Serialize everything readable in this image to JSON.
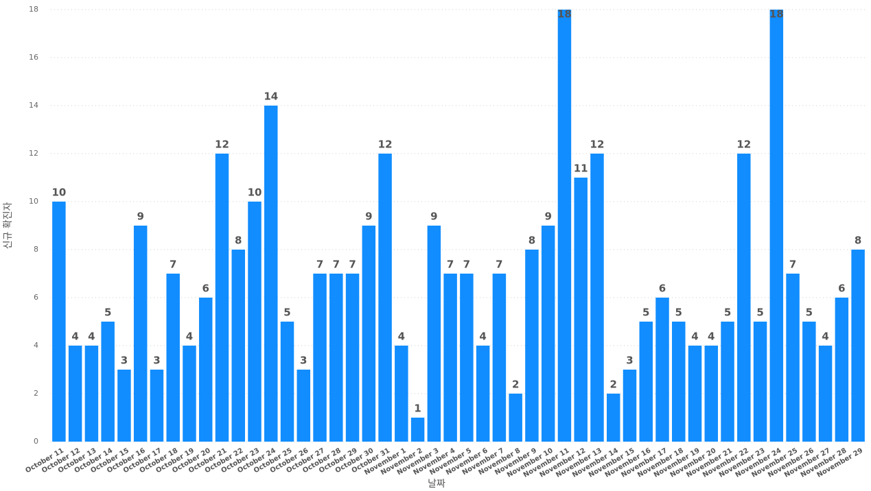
{
  "chart_data": {
    "type": "bar",
    "x_label": "날짜",
    "y_label": "신규 확진자",
    "categories": [
      "October 11",
      "October 12",
      "October 13",
      "October 14",
      "October 15",
      "October 16",
      "October 17",
      "October 18",
      "October 19",
      "October 20",
      "October 21",
      "October 22",
      "October 23",
      "October 24",
      "October 25",
      "October 26",
      "October 27",
      "October 28",
      "October 29",
      "October 30",
      "October 31",
      "November 1",
      "November 2",
      "November 3",
      "November 4",
      "November 5",
      "November 6",
      "November 7",
      "November 8",
      "November 9",
      "November 10",
      "November 11",
      "November 12",
      "November 13",
      "November 14",
      "November 15",
      "November 16",
      "November 17",
      "November 18",
      "November 19",
      "November 20",
      "November 21",
      "November 22",
      "November 23",
      "November 24",
      "November 25",
      "November 26",
      "November 27",
      "November 28",
      "November 29"
    ],
    "values": [
      10,
      4,
      4,
      5,
      3,
      9,
      3,
      7,
      4,
      6,
      12,
      8,
      10,
      14,
      5,
      3,
      7,
      7,
      7,
      9,
      12,
      4,
      1,
      9,
      7,
      7,
      4,
      7,
      2,
      8,
      9,
      18,
      11,
      12,
      2,
      3,
      5,
      6,
      5,
      4,
      4,
      5,
      12,
      5,
      18,
      7,
      5,
      4,
      6,
      8
    ],
    "color": "#118dff",
    "ylim": [
      0,
      18
    ],
    "yticks": [
      0,
      2,
      4,
      6,
      8,
      10,
      12,
      14,
      16,
      18
    ],
    "grid": true
  }
}
